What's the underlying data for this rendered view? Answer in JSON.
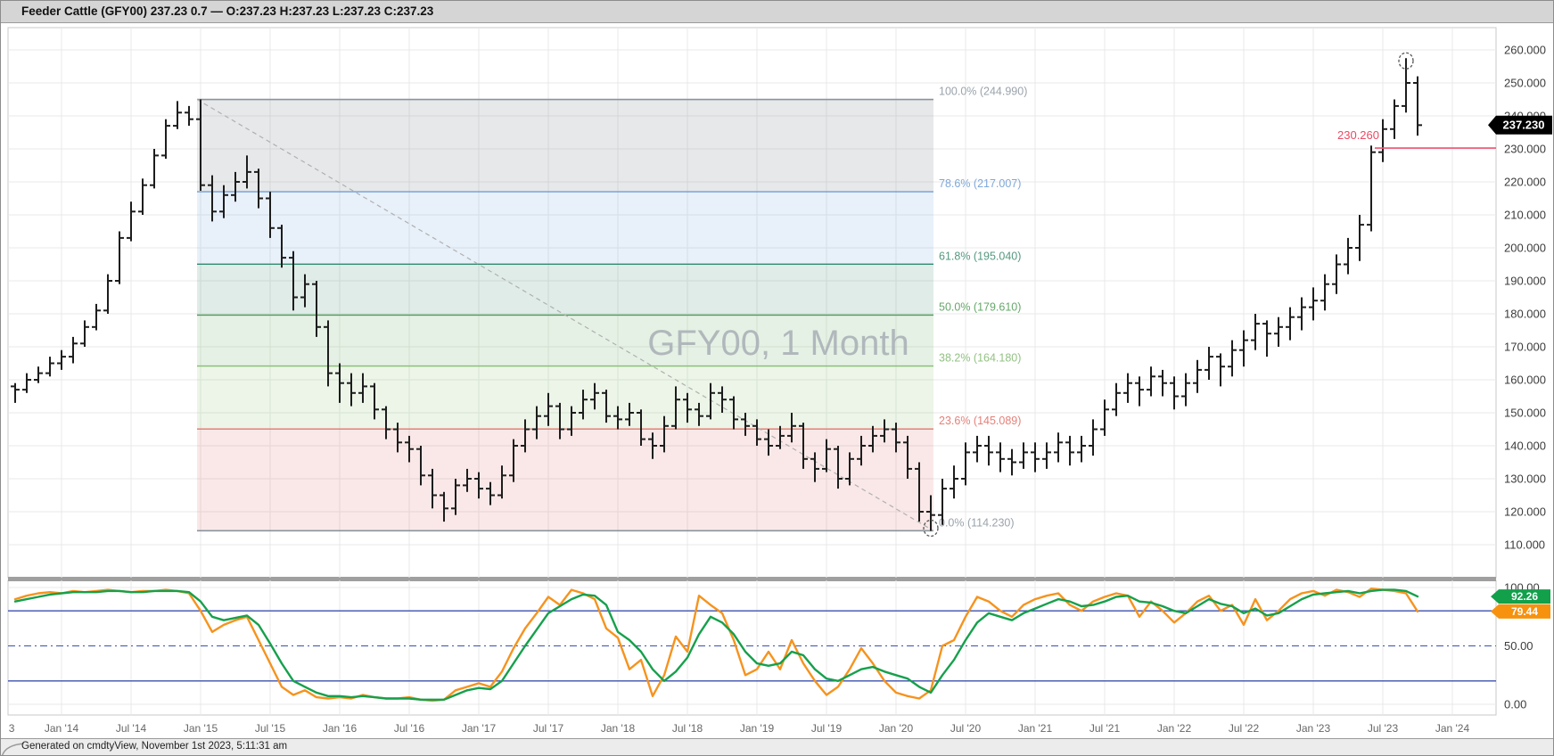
{
  "ui": {
    "title": "Feeder Cattle (GFY00) 237.23 0.7 — O:237.23 H:237.23 L:237.23 C:237.23",
    "footer": "Generated on cmdtyView, November 1st 2023, 5:11:31 am"
  },
  "colors": {
    "bar": "#1d1d1d",
    "grid": "#e9e9e9",
    "pane_border": "#c8c8c8",
    "separator": "#9f9f9f",
    "stoch_green": "#16a04c",
    "stoch_orange": "#f6931d",
    "badge_green": "#12a04b",
    "badge_orange": "#f6920e",
    "ref_navy": "#3b4fae",
    "alert_red": "#ee5371",
    "badge_black": "#000000",
    "axis_text": "#3c3c3c",
    "xlabel_text": "#666666",
    "trendline": "#b0b0b0",
    "annotation": "#555555"
  },
  "chart_data": {
    "type": "ohlc_with_stochastic",
    "symbol": "GFY00",
    "interval": "1 Month",
    "watermark": "GFY00, 1 Month",
    "start_month": "2013-09",
    "price_axis": {
      "current_badge": "237.230",
      "current_price": 237.23,
      "ticks": [
        {
          "v": 260,
          "t": "260.000"
        },
        {
          "v": 250,
          "t": "250.000"
        },
        {
          "v": 240,
          "t": "240.000"
        },
        {
          "v": 230,
          "t": "230.000"
        },
        {
          "v": 220,
          "t": "220.000"
        },
        {
          "v": 210,
          "t": "210.000"
        },
        {
          "v": 200,
          "t": "200.000"
        },
        {
          "v": 190,
          "t": "190.000"
        },
        {
          "v": 180,
          "t": "180.000"
        },
        {
          "v": 170,
          "t": "170.000"
        },
        {
          "v": 160,
          "t": "160.000"
        },
        {
          "v": 150,
          "t": "150.000"
        },
        {
          "v": 140,
          "t": "140.000"
        },
        {
          "v": 130,
          "t": "130.000"
        },
        {
          "v": 120,
          "t": "120.000"
        },
        {
          "v": 110,
          "t": "110.000"
        }
      ]
    },
    "x_axis": {
      "labels": [
        {
          "t": "3",
          "b": -0.3
        },
        {
          "t": "Jan '14",
          "b": 4
        },
        {
          "t": "Jul '14",
          "b": 10
        },
        {
          "t": "Jan '15",
          "b": 16
        },
        {
          "t": "Jul '15",
          "b": 22
        },
        {
          "t": "Jan '16",
          "b": 28
        },
        {
          "t": "Jul '16",
          "b": 34
        },
        {
          "t": "Jan '17",
          "b": 40
        },
        {
          "t": "Jul '17",
          "b": 46
        },
        {
          "t": "Jan '18",
          "b": 52
        },
        {
          "t": "Jul '18",
          "b": 58
        },
        {
          "t": "Jan '19",
          "b": 64
        },
        {
          "t": "Jul '19",
          "b": 70
        },
        {
          "t": "Jan '20",
          "b": 76
        },
        {
          "t": "Jul '20",
          "b": 82
        },
        {
          "t": "Jan '21",
          "b": 88
        },
        {
          "t": "Jul '21",
          "b": 94
        },
        {
          "t": "Jan '22",
          "b": 100
        },
        {
          "t": "Jul '22",
          "b": 106
        },
        {
          "t": "Jan '23",
          "b": 112
        },
        {
          "t": "Jul '23",
          "b": 118
        },
        {
          "t": "Jan '24",
          "b": 124
        }
      ]
    },
    "ohlc_hlc": [
      [
        159,
        153,
        157
      ],
      [
        162,
        156,
        160
      ],
      [
        164,
        159,
        162
      ],
      [
        167,
        161,
        165
      ],
      [
        169,
        163,
        167
      ],
      [
        173,
        165,
        171
      ],
      [
        178,
        170,
        176
      ],
      [
        183,
        175,
        181
      ],
      [
        192,
        180,
        190
      ],
      [
        205,
        189,
        203
      ],
      [
        214,
        202,
        211
      ],
      [
        221,
        210,
        219
      ],
      [
        230,
        218,
        228
      ],
      [
        239,
        227,
        237
      ],
      [
        244.5,
        236,
        241
      ],
      [
        243,
        237,
        239
      ],
      [
        245,
        217.3,
        219
      ],
      [
        222,
        208,
        211
      ],
      [
        219,
        209,
        216
      ],
      [
        223,
        214,
        220
      ],
      [
        228,
        218,
        223
      ],
      [
        224,
        212,
        215
      ],
      [
        217,
        203,
        206
      ],
      [
        207,
        194,
        197
      ],
      [
        199,
        181,
        185
      ],
      [
        192,
        182,
        189
      ],
      [
        190,
        173,
        176
      ],
      [
        178,
        158,
        162
      ],
      [
        165,
        153,
        159
      ],
      [
        162,
        152,
        156
      ],
      [
        162,
        153,
        158
      ],
      [
        159,
        148,
        151
      ],
      [
        152,
        142,
        145
      ],
      [
        147,
        138,
        141
      ],
      [
        143,
        135,
        139
      ],
      [
        140,
        128,
        131
      ],
      [
        133,
        121,
        125
      ],
      [
        126,
        117,
        121
      ],
      [
        130,
        119,
        128
      ],
      [
        133,
        126,
        130
      ],
      [
        132,
        124,
        127
      ],
      [
        129,
        122,
        125
      ],
      [
        134,
        124,
        131
      ],
      [
        142,
        129,
        140
      ],
      [
        148,
        138,
        145
      ],
      [
        152,
        142,
        149
      ],
      [
        156,
        146,
        152
      ],
      [
        153,
        142,
        145
      ],
      [
        152,
        143,
        150
      ],
      [
        157,
        148,
        154
      ],
      [
        159,
        151,
        156
      ],
      [
        157,
        147,
        149
      ],
      [
        152,
        145,
        148
      ],
      [
        153,
        146,
        150
      ],
      [
        151,
        140,
        142
      ],
      [
        144,
        136,
        140
      ],
      [
        149,
        138,
        146
      ],
      [
        158,
        145,
        154
      ],
      [
        156,
        147,
        151
      ],
      [
        153,
        146,
        149
      ],
      [
        159,
        148,
        156
      ],
      [
        158,
        150,
        154
      ],
      [
        155,
        145,
        148
      ],
      [
        150,
        143,
        146
      ],
      [
        148,
        140,
        142
      ],
      [
        145,
        137,
        140
      ],
      [
        146,
        139,
        143
      ],
      [
        150,
        141,
        146
      ],
      [
        147,
        133,
        136
      ],
      [
        138,
        129,
        133
      ],
      [
        142,
        132,
        139
      ],
      [
        140,
        127,
        130
      ],
      [
        138,
        128,
        136
      ],
      [
        143,
        134,
        140
      ],
      [
        146,
        138,
        143
      ],
      [
        148,
        141,
        145
      ],
      [
        147,
        138,
        141
      ],
      [
        143,
        130,
        133
      ],
      [
        135,
        117,
        120
      ],
      [
        125,
        114.2,
        119
      ],
      [
        130,
        116,
        127
      ],
      [
        134,
        124,
        130
      ],
      [
        141,
        128,
        138
      ],
      [
        143,
        135,
        140
      ],
      [
        143,
        134,
        138
      ],
      [
        141,
        132,
        136
      ],
      [
        139,
        131,
        135
      ],
      [
        141,
        133,
        138
      ],
      [
        141,
        132,
        136
      ],
      [
        141,
        133,
        138
      ],
      [
        144,
        135,
        141
      ],
      [
        143,
        134,
        138
      ],
      [
        143,
        135,
        140
      ],
      [
        148,
        137,
        145
      ],
      [
        154,
        143,
        151
      ],
      [
        159,
        149,
        156
      ],
      [
        162,
        153,
        159
      ],
      [
        161,
        152,
        157
      ],
      [
        164,
        155,
        161
      ],
      [
        163,
        155,
        159
      ],
      [
        161,
        151,
        155
      ],
      [
        162,
        152,
        159
      ],
      [
        166,
        156,
        163
      ],
      [
        170,
        160,
        167
      ],
      [
        168,
        158,
        164
      ],
      [
        172,
        161,
        169
      ],
      [
        175,
        164,
        172
      ],
      [
        180,
        169,
        177
      ],
      [
        178,
        167,
        174
      ],
      [
        179,
        170,
        176
      ],
      [
        182,
        172,
        179
      ],
      [
        185,
        175,
        182
      ],
      [
        188,
        178,
        184
      ],
      [
        192,
        181,
        189
      ],
      [
        198,
        186,
        195
      ],
      [
        203,
        192,
        200
      ],
      [
        210,
        196,
        207
      ],
      [
        231,
        205,
        229
      ],
      [
        239,
        226,
        236
      ],
      [
        245,
        233,
        243
      ],
      [
        257.5,
        241,
        250
      ],
      [
        252,
        234,
        237.2
      ]
    ],
    "stochastic": {
      "green": [
        88,
        90,
        92,
        94,
        95,
        96,
        96,
        96,
        97,
        97,
        96,
        96,
        97,
        97,
        97,
        96,
        88,
        75,
        72,
        74,
        76,
        68,
        52,
        35,
        20,
        15,
        10,
        7,
        7,
        6,
        7,
        6,
        5,
        5,
        5,
        4,
        4,
        4,
        8,
        12,
        14,
        13,
        20,
        35,
        50,
        64,
        78,
        84,
        90,
        94,
        93,
        85,
        62,
        55,
        45,
        30,
        20,
        28,
        40,
        60,
        75,
        70,
        60,
        45,
        35,
        33,
        35,
        45,
        42,
        30,
        22,
        20,
        25,
        30,
        32,
        28,
        25,
        22,
        15,
        10,
        25,
        38,
        55,
        70,
        78,
        75,
        72,
        78,
        82,
        86,
        90,
        88,
        84,
        85,
        88,
        92,
        93,
        88,
        87,
        84,
        80,
        78,
        84,
        90,
        86,
        84,
        78,
        82,
        76,
        78,
        84,
        90,
        94,
        95,
        96,
        97,
        95,
        97,
        98,
        98,
        97,
        92.26
      ],
      "orange": [
        90,
        93,
        95,
        96,
        95,
        97,
        96,
        97,
        98,
        97,
        96,
        97,
        97,
        98,
        97,
        95,
        80,
        62,
        68,
        72,
        75,
        55,
        35,
        15,
        8,
        12,
        6,
        5,
        6,
        5,
        8,
        6,
        5,
        5,
        6,
        4,
        3,
        4,
        12,
        15,
        18,
        15,
        28,
        48,
        65,
        78,
        92,
        85,
        98,
        95,
        90,
        65,
        57,
        30,
        38,
        7,
        25,
        58,
        45,
        93,
        85,
        78,
        55,
        25,
        30,
        45,
        30,
        55,
        35,
        20,
        8,
        15,
        30,
        48,
        35,
        20,
        10,
        7,
        5,
        12,
        50,
        55,
        75,
        92,
        88,
        80,
        75,
        85,
        90,
        93,
        95,
        85,
        80,
        88,
        92,
        95,
        93,
        75,
        88,
        80,
        70,
        78,
        88,
        93,
        80,
        85,
        68,
        90,
        72,
        80,
        90,
        95,
        97,
        93,
        98,
        96,
        92,
        99,
        98,
        97,
        95,
        79.44
      ],
      "badges": {
        "green": "92.26",
        "orange": "79.44"
      },
      "levels": {
        "upper": 80,
        "mid": 50,
        "lower": 20
      },
      "axis": [
        {
          "v": 100,
          "t": "100.00"
        },
        {
          "v": 50,
          "t": "50.00"
        },
        {
          "v": 0,
          "t": "0.00"
        }
      ]
    },
    "fibonacci": {
      "from_bar": 16,
      "to_bar": 79,
      "levels": [
        {
          "pct": "100.0%",
          "val": "244.990",
          "p": 244.99,
          "line": "#8a949c",
          "label": "#9aa3ab"
        },
        {
          "pct": "78.6%",
          "val": "217.007",
          "p": 217.007,
          "line": "#6f9ed6",
          "label": "#7fa8d9"
        },
        {
          "pct": "61.8%",
          "val": "195.040",
          "p": 195.04,
          "line": "#2f8a6e",
          "label": "#55997f"
        },
        {
          "pct": "50.0%",
          "val": "179.610",
          "p": 179.61,
          "line": "#4f9e55",
          "label": "#66a86a"
        },
        {
          "pct": "38.2%",
          "val": "164.180",
          "p": 164.18,
          "line": "#85bd74",
          "label": "#93c283"
        },
        {
          "pct": "23.6%",
          "val": "145.089",
          "p": 145.089,
          "line": "#e4766e",
          "label": "#e58079"
        },
        {
          "pct": "0.0%",
          "val": "114.230",
          "p": 114.23,
          "line": "#8a949c",
          "label": "#9aa3ab"
        }
      ],
      "fills": [
        "rgba(120,128,134,0.18)",
        "rgba(110,160,215,0.16)",
        "rgba(60,135,110,0.16)",
        "rgba(95,165,85,0.16)",
        "rgba(135,190,115,0.16)",
        "rgba(225,110,110,0.16)"
      ]
    },
    "alert_line": {
      "label": "230.260",
      "p": 230.26
    },
    "annotations": [
      {
        "bar": 120,
        "at": "high",
        "p": 257.5
      },
      {
        "bar": 79,
        "at": "low",
        "p": 114.2
      }
    ]
  }
}
